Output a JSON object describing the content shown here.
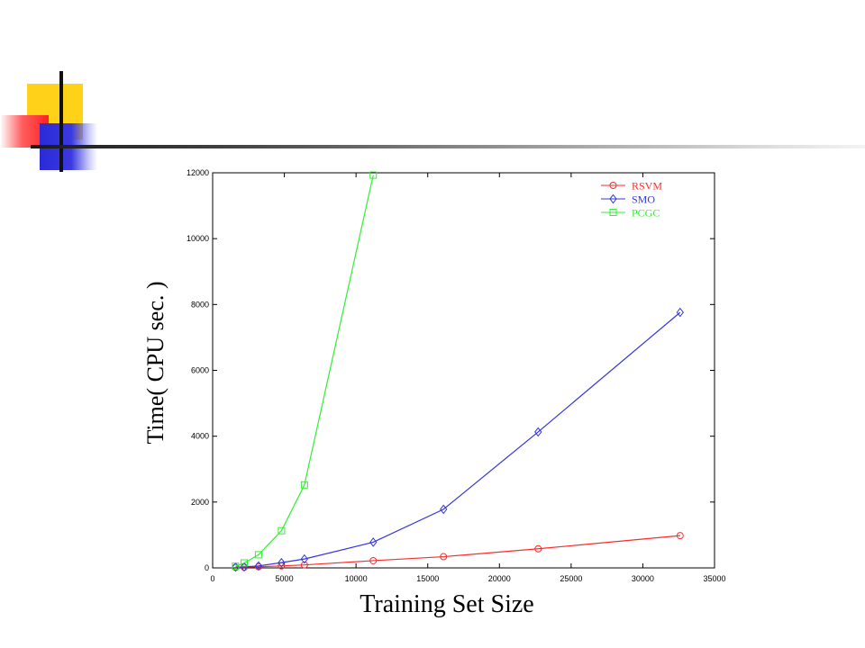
{
  "colors": {
    "rsvm": "#ff2a2a",
    "smo": "#3535dd",
    "pcgc": "#33ee33"
  },
  "chart_data": {
    "type": "line",
    "title": "",
    "xlabel": "Training Set Size",
    "ylabel": "Time( CPU sec. )",
    "xlim": [
      0,
      35000
    ],
    "ylim": [
      0,
      12000
    ],
    "xticks": [
      0,
      5000,
      10000,
      15000,
      20000,
      25000,
      30000,
      35000
    ],
    "yticks": [
      0,
      2000,
      4000,
      6000,
      8000,
      10000,
      12000
    ],
    "legend_position": "top-right",
    "grid": false,
    "series": [
      {
        "name": "RSVM",
        "marker": "circle",
        "color": "#ff2a2a",
        "x": [
          1600,
          2200,
          3200,
          4800,
          6400,
          11200,
          16100,
          22700,
          32600
        ],
        "y": [
          15,
          20,
          35,
          60,
          90,
          220,
          340,
          580,
          980
        ]
      },
      {
        "name": "SMO",
        "marker": "diamond",
        "color": "#3535dd",
        "x": [
          1600,
          2200,
          3200,
          4800,
          6400,
          11200,
          16100,
          22700,
          32600
        ],
        "y": [
          25,
          30,
          60,
          160,
          270,
          780,
          1780,
          4130,
          7760
        ]
      },
      {
        "name": "PCGC",
        "marker": "square",
        "color": "#33ee33",
        "x": [
          1600,
          2200,
          3200,
          4800,
          6400,
          11200
        ],
        "y": [
          50,
          150,
          400,
          1130,
          2520,
          11930
        ]
      }
    ]
  }
}
